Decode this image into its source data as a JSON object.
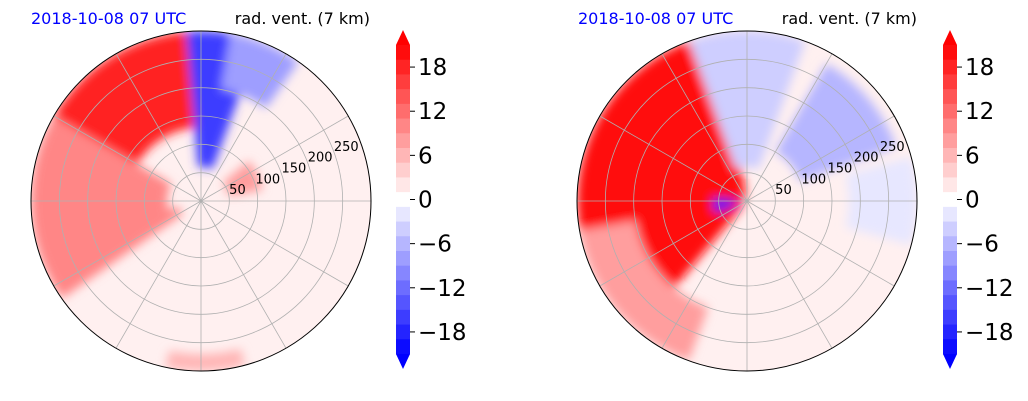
{
  "chart_data": [
    {
      "type": "heatmap",
      "subtype": "polar-contourf",
      "title_left": "2018-10-08 07 UTC",
      "title_right": "rad. vent. (7 km)",
      "title_left_color": "#0000ff",
      "radial_ticks": [
        "50",
        "100",
        "150",
        "200",
        "250"
      ],
      "radial_tick_values": [
        50,
        100,
        150,
        200,
        250
      ],
      "radial_max": 300,
      "angular_grid_deg": 30,
      "colorbar": {
        "ticks": [
          "18",
          "12",
          "6",
          "0",
          "−6",
          "−12",
          "−18"
        ],
        "tick_values": [
          18,
          12,
          6,
          0,
          -6,
          -12,
          -18
        ],
        "vmin": -21,
        "vmax": 21,
        "levels": 21,
        "extend": "both",
        "cmap": "bwr"
      },
      "regions": [
        {
          "sign": "positive",
          "theta": [
            95,
            170
          ],
          "r": [
            130,
            300
          ],
          "value": 18
        },
        {
          "sign": "positive",
          "theta": [
            150,
            200
          ],
          "r": [
            60,
            300
          ],
          "value": 9
        },
        {
          "sign": "negative",
          "theta": [
            70,
            95
          ],
          "r": [
            60,
            300
          ],
          "value": -16
        },
        {
          "sign": "negative",
          "theta": [
            55,
            80
          ],
          "r": [
            200,
            300
          ],
          "value": -9
        },
        {
          "sign": "positive",
          "theta": [
            195,
            215
          ],
          "r": [
            40,
            300
          ],
          "value": 9
        },
        {
          "sign": "positive",
          "theta": [
            258,
            285
          ],
          "r": [
            270,
            300
          ],
          "value": 6
        },
        {
          "sign": "positive",
          "theta": [
            10,
            40
          ],
          "r": [
            50,
            110
          ],
          "value": 7
        }
      ]
    },
    {
      "type": "heatmap",
      "subtype": "polar-contourf",
      "title_left": "2018-10-08 07 UTC",
      "title_right": "rad. vent. (7 km)",
      "title_left_color": "#0000ff",
      "radial_ticks": [
        "50",
        "100",
        "150",
        "200",
        "250"
      ],
      "radial_tick_values": [
        50,
        100,
        150,
        200,
        250
      ],
      "radial_max": 300,
      "angular_grid_deg": 30,
      "colorbar": {
        "ticks": [
          "18",
          "12",
          "6",
          "0",
          "−6",
          "−12",
          "−18"
        ],
        "tick_values": [
          18,
          12,
          6,
          0,
          -6,
          -12,
          -18
        ],
        "vmin": -21,
        "vmax": 21,
        "levels": 21,
        "extend": "both",
        "cmap": "bwr"
      },
      "regions": [
        {
          "sign": "positive",
          "theta": [
            100,
            230
          ],
          "r": [
            10,
            300
          ],
          "value": 19
        },
        {
          "sign": "positive",
          "theta": [
            190,
            250
          ],
          "r": [
            200,
            300
          ],
          "value": 7
        },
        {
          "sign": "negative",
          "theta": [
            70,
            110
          ],
          "r": [
            60,
            300
          ],
          "value": -5
        },
        {
          "sign": "negative",
          "theta": [
            175,
            200
          ],
          "r": [
            20,
            60
          ],
          "value": -18
        },
        {
          "sign": "negative",
          "theta": [
            20,
            60
          ],
          "r": [
            100,
            280
          ],
          "value": -6
        },
        {
          "sign": "negative",
          "theta": [
            -15,
            15
          ],
          "r": [
            180,
            300
          ],
          "value": -3
        }
      ]
    }
  ]
}
